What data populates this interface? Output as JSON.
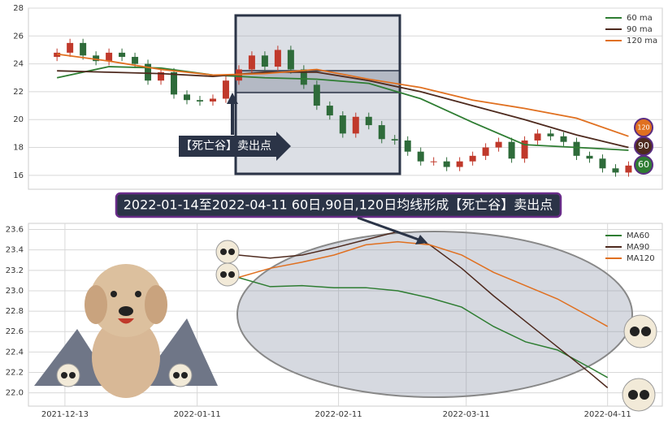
{
  "chart_data": [
    {
      "type": "candlestick",
      "ylim": [
        15,
        28
      ],
      "yticks": [
        16,
        18,
        20,
        22,
        24,
        26,
        28
      ],
      "xlim": [
        -2.2,
        46.6
      ],
      "grid": true,
      "up_color": "#c0392b",
      "down_color": "#2e6b3a",
      "open": [
        24.5,
        24.8,
        25.5,
        24.6,
        24.2,
        24.8,
        24.5,
        24.0,
        22.8,
        23.4,
        21.8,
        21.4,
        21.3,
        21.5,
        22.8,
        23.6,
        24.6,
        23.8,
        25.0,
        23.6,
        22.5,
        21.0,
        20.3,
        19.0,
        20.2,
        19.6,
        18.6,
        18.5,
        17.7,
        17.0,
        17.0,
        16.6,
        17.0,
        17.4,
        18.0,
        18.4,
        17.2,
        18.5,
        19.0,
        18.8,
        18.4,
        17.4,
        17.2,
        16.5,
        16.2
      ],
      "high": [
        25.1,
        25.8,
        25.8,
        24.9,
        25.1,
        25.1,
        24.8,
        24.3,
        23.7,
        23.7,
        22.1,
        21.7,
        21.8,
        23.1,
        23.9,
        24.9,
        24.9,
        25.3,
        25.3,
        23.9,
        22.8,
        21.3,
        20.6,
        20.5,
        20.5,
        19.9,
        18.9,
        18.8,
        18.0,
        17.3,
        17.3,
        17.3,
        17.7,
        18.3,
        18.7,
        18.7,
        18.8,
        19.3,
        19.3,
        19.1,
        18.7,
        17.7,
        17.5,
        16.8,
        17.0
      ],
      "low": [
        24.2,
        24.5,
        24.3,
        23.9,
        23.9,
        24.2,
        23.7,
        22.5,
        22.5,
        21.5,
        21.1,
        21.0,
        21.0,
        21.2,
        22.5,
        23.3,
        23.5,
        23.5,
        23.3,
        22.2,
        20.7,
        20.0,
        18.7,
        18.7,
        19.3,
        18.3,
        18.2,
        17.4,
        16.7,
        16.7,
        16.3,
        16.3,
        16.7,
        17.1,
        17.7,
        16.9,
        16.9,
        18.2,
        18.5,
        18.1,
        17.1,
        16.9,
        16.2,
        15.9,
        15.9
      ],
      "close": [
        24.8,
        25.5,
        24.6,
        24.2,
        24.8,
        24.5,
        24.0,
        22.8,
        23.4,
        21.8,
        21.4,
        21.3,
        21.5,
        22.8,
        23.6,
        24.6,
        23.8,
        25.0,
        23.6,
        22.5,
        21.0,
        20.3,
        19.0,
        20.2,
        19.6,
        18.6,
        18.5,
        17.7,
        17.0,
        17.0,
        16.6,
        17.0,
        17.4,
        18.0,
        18.4,
        17.2,
        18.5,
        19.0,
        18.8,
        18.4,
        17.4,
        17.2,
        16.5,
        16.2,
        16.7
      ],
      "ma_x": [
        0,
        4,
        8,
        12,
        16,
        20,
        24,
        28,
        32,
        36,
        40,
        44
      ],
      "series": [
        {
          "name": "60 ma",
          "badge": "60",
          "color": "#2e7d32",
          "values": [
            23.0,
            23.8,
            23.7,
            23.2,
            23.0,
            22.9,
            22.6,
            21.5,
            19.8,
            18.2,
            18.0,
            17.8
          ]
        },
        {
          "name": "90 ma",
          "badge": "90",
          "color": "#4e2a1e",
          "values": [
            23.5,
            23.4,
            23.3,
            23.1,
            23.4,
            23.4,
            22.8,
            22.0,
            21.0,
            20.0,
            18.9,
            18.0
          ]
        },
        {
          "name": "120 ma",
          "badge": "120",
          "color": "#e07020",
          "values": [
            24.7,
            24.2,
            23.6,
            23.2,
            23.3,
            23.6,
            22.9,
            22.3,
            21.4,
            20.8,
            20.1,
            18.8
          ]
        }
      ],
      "annotation": "【死亡谷】卖出点",
      "banner": "2022-01-14至2022-04-11 60日,90日,120日均线形成【死亡谷】卖出点"
    },
    {
      "type": "line",
      "ylim": [
        21.87,
        23.66
      ],
      "yticks": [
        {
          "value": 22.0,
          "label": "22.0"
        },
        22.2,
        22.4,
        22.6,
        22.8,
        {
          "value": 23.0,
          "label": "23.0"
        },
        23.2,
        23.4,
        23.6
      ],
      "xlim": [
        "2021-12-05",
        "2022-04-23"
      ],
      "xticks": [
        "2021-12-13",
        "2022-01-11",
        "2022-02-11",
        "2022-03-11",
        "2022-04-11"
      ],
      "grid": true,
      "x": [
        "2022-01-20",
        "2022-01-27",
        "2022-02-03",
        "2022-02-10",
        "2022-02-17",
        "2022-02-24",
        "2022-03-03",
        "2022-03-10",
        "2022-03-17",
        "2022-03-24",
        "2022-03-31",
        "2022-04-07",
        "2022-04-11"
      ],
      "series": [
        {
          "name": "MA60",
          "color": "#2e7d32",
          "values": [
            23.13,
            23.04,
            23.05,
            23.03,
            23.03,
            23.0,
            22.93,
            22.84,
            22.65,
            22.5,
            22.42,
            22.25,
            22.15
          ]
        },
        {
          "name": "MA90",
          "color": "#4e2a1e",
          "values": [
            23.35,
            23.32,
            23.35,
            23.42,
            23.5,
            23.58,
            23.45,
            23.22,
            22.95,
            22.7,
            22.45,
            22.2,
            22.05
          ]
        },
        {
          "name": "MA120",
          "color": "#e07020",
          "values": [
            23.13,
            23.22,
            23.28,
            23.35,
            23.45,
            23.48,
            23.45,
            23.35,
            23.18,
            23.05,
            22.92,
            22.75,
            22.65
          ]
        }
      ]
    }
  ]
}
